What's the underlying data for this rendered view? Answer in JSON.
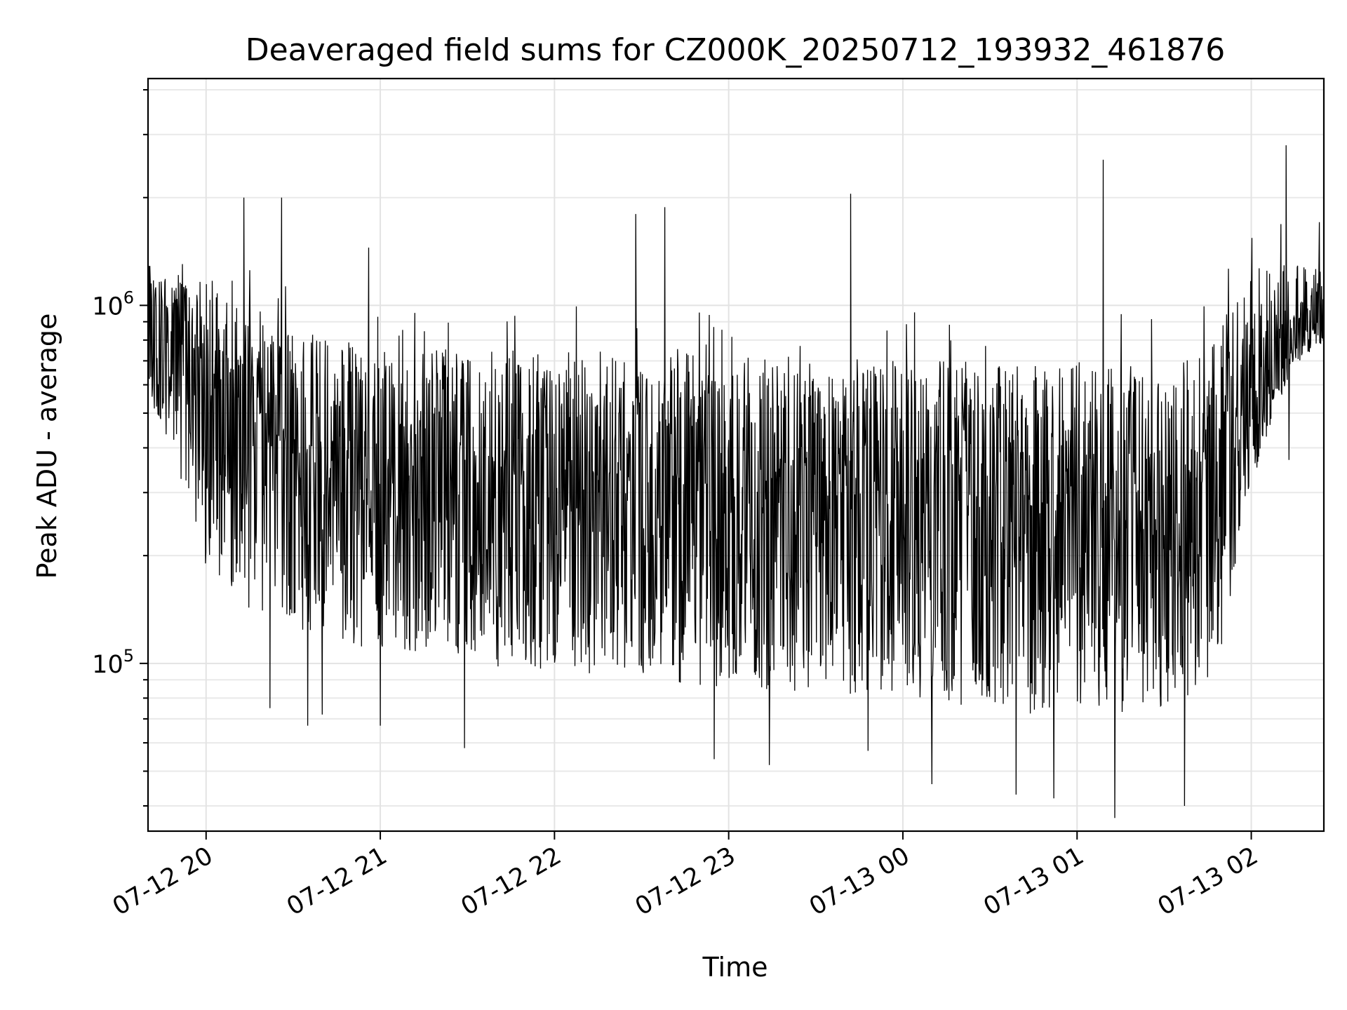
{
  "chart_data": {
    "type": "line",
    "title": "Deaveraged field sums for CZ000K_20250712_193932_461876",
    "xlabel": "Time",
    "ylabel": "Peak ADU - average",
    "yscale": "log",
    "xlim": [
      "2025-07-12 19:40",
      "2025-07-13 02:25"
    ],
    "ylim": [
      34000,
      4300000
    ],
    "grid": true,
    "x_ticks": [
      {
        "value": "2025-07-12 20:00",
        "label": "07-12 20"
      },
      {
        "value": "2025-07-12 21:00",
        "label": "07-12 21"
      },
      {
        "value": "2025-07-12 22:00",
        "label": "07-12 22"
      },
      {
        "value": "2025-07-12 23:00",
        "label": "07-12 23"
      },
      {
        "value": "2025-07-13 00:00",
        "label": "07-13 00"
      },
      {
        "value": "2025-07-13 01:00",
        "label": "07-13 01"
      },
      {
        "value": "2025-07-13 02:00",
        "label": "07-13 02"
      }
    ],
    "y_ticks": [
      {
        "value": 100000,
        "base": "10",
        "exp": "5"
      },
      {
        "value": 1000000,
        "base": "10",
        "exp": "6"
      }
    ],
    "series": [
      {
        "color": "#000000",
        "x": [
          "2025-07-12 19:40",
          "2025-07-12 19:45",
          "2025-07-12 19:50",
          "2025-07-12 19:55",
          "2025-07-12 20:00",
          "2025-07-12 20:05",
          "2025-07-12 20:10",
          "2025-07-12 20:15",
          "2025-07-12 20:20",
          "2025-07-12 20:25",
          "2025-07-12 20:30",
          "2025-07-12 20:35",
          "2025-07-12 20:40",
          "2025-07-12 20:45",
          "2025-07-12 20:50",
          "2025-07-12 20:55",
          "2025-07-12 21:00",
          "2025-07-12 21:10",
          "2025-07-12 21:20",
          "2025-07-12 21:30",
          "2025-07-12 21:40",
          "2025-07-12 21:50",
          "2025-07-12 22:00",
          "2025-07-12 22:10",
          "2025-07-12 22:20",
          "2025-07-12 22:30",
          "2025-07-12 22:40",
          "2025-07-12 22:50",
          "2025-07-12 23:00",
          "2025-07-12 23:10",
          "2025-07-12 23:20",
          "2025-07-12 23:30",
          "2025-07-12 23:40",
          "2025-07-12 23:50",
          "2025-07-13 00:00",
          "2025-07-13 00:10",
          "2025-07-13 00:20",
          "2025-07-13 00:30",
          "2025-07-13 00:40",
          "2025-07-13 00:50",
          "2025-07-13 01:00",
          "2025-07-13 01:10",
          "2025-07-13 01:20",
          "2025-07-13 01:30",
          "2025-07-13 01:40",
          "2025-07-13 01:45",
          "2025-07-13 01:50",
          "2025-07-13 01:55",
          "2025-07-13 02:00",
          "2025-07-13 02:05",
          "2025-07-13 02:10",
          "2025-07-13 02:15",
          "2025-07-13 02:20",
          "2025-07-13 02:25"
        ],
        "y": [
          850000,
          820000,
          790000,
          730000,
          640000,
          560000,
          470000,
          420000,
          380000,
          360000,
          345000,
          330000,
          325000,
          320000,
          315000,
          310000,
          310000,
          305000,
          300000,
          300000,
          295000,
          295000,
          290000,
          290000,
          285000,
          285000,
          285000,
          280000,
          280000,
          275000,
          270000,
          265000,
          260000,
          255000,
          255000,
          250000,
          250000,
          248000,
          248000,
          250000,
          250000,
          255000,
          260000,
          265000,
          275000,
          290000,
          330000,
          420000,
          480000,
          560000,
          700000,
          800000,
          880000,
          920000
        ],
        "lower_envelope": [
          560000,
          460000,
          360000,
          250000,
          180000,
          150000,
          140000,
          140000,
          135000,
          130000,
          125000,
          120000,
          118000,
          115000,
          112000,
          110000,
          110000,
          105000,
          102000,
          100000,
          98000,
          96000,
          95000,
          94000,
          92000,
          90000,
          88000,
          87000,
          86000,
          85000,
          84000,
          83000,
          82000,
          80000,
          80000,
          78000,
          76000,
          74000,
          72000,
          72000,
          72000,
          72000,
          74000,
          76000,
          80000,
          86000,
          110000,
          200000,
          310000,
          420000,
          550000,
          680000,
          740000,
          780000
        ],
        "upper_envelope": [
          1300000,
          1300000,
          1250000,
          1200000,
          1150000,
          1100000,
          1050000,
          950000,
          900000,
          880000,
          860000,
          840000,
          820000,
          800000,
          790000,
          780000,
          780000,
          770000,
          760000,
          760000,
          750000,
          750000,
          750000,
          745000,
          745000,
          740000,
          740000,
          735000,
          735000,
          730000,
          725000,
          720000,
          715000,
          710000,
          705000,
          700000,
          700000,
          690000,
          690000,
          690000,
          695000,
          700000,
          710000,
          730000,
          760000,
          820000,
          980000,
          1100000,
          1200000,
          1250000,
          1300000,
          1300000,
          1300000,
          1300000
        ],
        "spikes": [
          {
            "x": "2025-07-12 20:13",
            "y": 2000000
          },
          {
            "x": "2025-07-12 20:22",
            "y": 75000
          },
          {
            "x": "2025-07-12 20:26",
            "y": 2000000
          },
          {
            "x": "2025-07-12 20:35",
            "y": 67000
          },
          {
            "x": "2025-07-12 20:40",
            "y": 72000
          },
          {
            "x": "2025-07-12 20:56",
            "y": 1450000
          },
          {
            "x": "2025-07-12 21:00",
            "y": 67000
          },
          {
            "x": "2025-07-12 21:29",
            "y": 58000
          },
          {
            "x": "2025-07-12 22:28",
            "y": 1800000
          },
          {
            "x": "2025-07-12 22:38",
            "y": 1880000
          },
          {
            "x": "2025-07-12 22:55",
            "y": 54000
          },
          {
            "x": "2025-07-12 23:14",
            "y": 52000
          },
          {
            "x": "2025-07-12 23:42",
            "y": 2050000
          },
          {
            "x": "2025-07-12 23:48",
            "y": 57000
          },
          {
            "x": "2025-07-13 00:10",
            "y": 46000
          },
          {
            "x": "2025-07-13 00:39",
            "y": 43000
          },
          {
            "x": "2025-07-13 00:52",
            "y": 42000
          },
          {
            "x": "2025-07-13 01:09",
            "y": 2550000
          },
          {
            "x": "2025-07-13 01:13",
            "y": 37000
          },
          {
            "x": "2025-07-13 01:37",
            "y": 40000
          },
          {
            "x": "2025-07-13 02:12",
            "y": 2800000
          },
          {
            "x": "2025-07-13 02:13",
            "y": 370000
          }
        ]
      }
    ]
  }
}
